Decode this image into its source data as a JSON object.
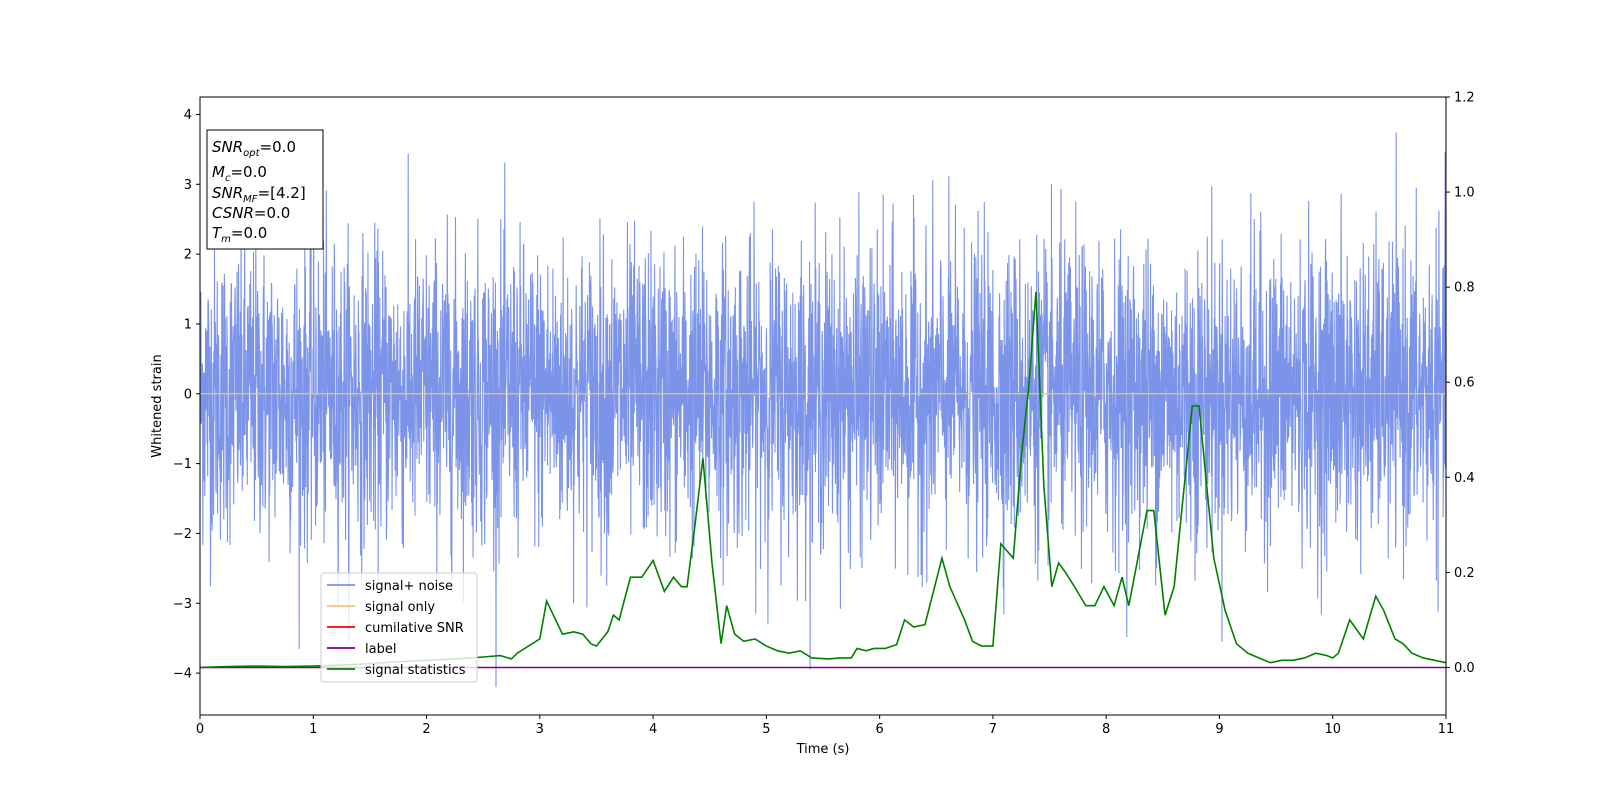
{
  "chart_data": {
    "type": "line",
    "xlabel": "Time (s)",
    "ylabel": "Whitened strain",
    "xlim": [
      0,
      11
    ],
    "ylim": [
      -4.6,
      4.25
    ],
    "y2lim": [
      -0.1,
      1.2
    ],
    "grid": false,
    "legend_position": "lower-left",
    "x_ticks": [
      "0",
      "1",
      "2",
      "3",
      "4",
      "5",
      "6",
      "7",
      "8",
      "9",
      "10",
      "11"
    ],
    "y_ticks": [
      "−4",
      "−3",
      "−2",
      "−1",
      "0",
      "1",
      "2",
      "3",
      "4"
    ],
    "y2_ticks": [
      "0.0",
      "0.2",
      "0.4",
      "0.6",
      "0.8",
      "1.0",
      "1.2"
    ],
    "annotation": {
      "lines": [
        {
          "main": "SNR",
          "sub": "opt",
          "rest": "=0.0"
        },
        {
          "main": "M",
          "sub": "c",
          "rest": "=0.0"
        },
        {
          "main": "SNR",
          "sub": "MF",
          "rest": "=[4.2]"
        },
        {
          "main": "CSNR",
          "sub": "",
          "rest": "=0.0"
        },
        {
          "main": "T",
          "sub": "m",
          "rest": "=0.0"
        }
      ]
    },
    "series": [
      {
        "name": "signal+ noise",
        "color": "#7b93e8",
        "axis": "left",
        "kind": "noise",
        "amplitude_range": [
          -4.2,
          3.85
        ]
      },
      {
        "name": "signal only",
        "color": "#f5c27a",
        "axis": "left",
        "y": 0.0
      },
      {
        "name": "cumilative SNR",
        "color": "#ff0000",
        "axis": "left"
      },
      {
        "name": "label",
        "color": "#800080",
        "axis": "right",
        "y": 0.0
      },
      {
        "name": "signal statistics",
        "color": "#008000",
        "axis": "right",
        "x": [
          0,
          0.25,
          0.5,
          0.75,
          1.0,
          1.25,
          1.5,
          1.75,
          2.0,
          2.25,
          2.5,
          2.65,
          2.75,
          2.8,
          2.9,
          3.0,
          3.06,
          3.2,
          3.3,
          3.38,
          3.45,
          3.5,
          3.6,
          3.65,
          3.7,
          3.8,
          3.9,
          4.0,
          4.1,
          4.18,
          4.25,
          4.3,
          4.37,
          4.44,
          4.52,
          4.6,
          4.65,
          4.72,
          4.8,
          4.9,
          5.0,
          5.1,
          5.2,
          5.3,
          5.4,
          5.55,
          5.65,
          5.75,
          5.8,
          5.88,
          5.95,
          6.05,
          6.15,
          6.22,
          6.3,
          6.4,
          6.55,
          6.62,
          6.75,
          6.82,
          6.9,
          7.0,
          7.07,
          7.18,
          7.25,
          7.32,
          7.38,
          7.45,
          7.52,
          7.58,
          7.64,
          7.72,
          7.82,
          7.9,
          7.98,
          8.07,
          8.14,
          8.2,
          8.28,
          8.36,
          8.42,
          8.52,
          8.6,
          8.68,
          8.76,
          8.82,
          8.88,
          8.95,
          9.05,
          9.15,
          9.25,
          9.35,
          9.45,
          9.55,
          9.65,
          9.75,
          9.85,
          9.95,
          10.0,
          10.05,
          10.15,
          10.27,
          10.38,
          10.45,
          10.55,
          10.62,
          10.7,
          10.8,
          10.9,
          11.0
        ],
        "y": [
          0.0,
          0.002,
          0.003,
          0.002,
          0.003,
          0.005,
          0.008,
          0.012,
          0.015,
          0.018,
          0.022,
          0.025,
          0.018,
          0.03,
          0.045,
          0.06,
          0.14,
          0.07,
          0.075,
          0.07,
          0.05,
          0.045,
          0.075,
          0.11,
          0.1,
          0.19,
          0.19,
          0.225,
          0.16,
          0.19,
          0.17,
          0.17,
          0.3,
          0.44,
          0.22,
          0.05,
          0.13,
          0.07,
          0.055,
          0.06,
          0.045,
          0.035,
          0.03,
          0.035,
          0.02,
          0.018,
          0.02,
          0.02,
          0.04,
          0.035,
          0.04,
          0.04,
          0.048,
          0.1,
          0.085,
          0.09,
          0.23,
          0.17,
          0.1,
          0.055,
          0.045,
          0.045,
          0.26,
          0.23,
          0.44,
          0.6,
          0.79,
          0.38,
          0.17,
          0.22,
          0.2,
          0.17,
          0.13,
          0.13,
          0.17,
          0.13,
          0.19,
          0.13,
          0.23,
          0.33,
          0.33,
          0.11,
          0.17,
          0.36,
          0.55,
          0.55,
          0.4,
          0.23,
          0.12,
          0.05,
          0.03,
          0.02,
          0.01,
          0.015,
          0.015,
          0.02,
          0.03,
          0.025,
          0.02,
          0.03,
          0.1,
          0.06,
          0.15,
          0.12,
          0.06,
          0.05,
          0.03,
          0.02,
          0.015,
          0.01
        ]
      }
    ]
  }
}
